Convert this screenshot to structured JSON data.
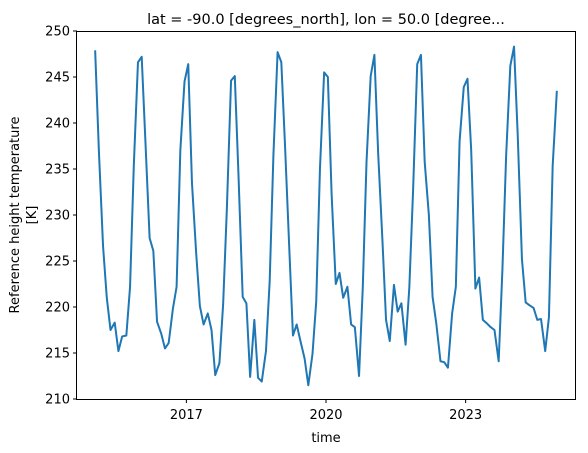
{
  "chart_data": {
    "type": "line",
    "title": "lat = -90.0 [degrees_north], lon = 50.0 [degree...",
    "xlabel": "time",
    "ylabel_lines": [
      "Reference height temperature",
      "[K]"
    ],
    "ylim": [
      210,
      250
    ],
    "xlim": [
      2014.65,
      2025.35
    ],
    "yticks": [
      210,
      215,
      220,
      225,
      230,
      235,
      240,
      245,
      250
    ],
    "xticks": [
      {
        "label": "2017",
        "x": 2017.0
      },
      {
        "label": "2020",
        "x": 2020.0
      },
      {
        "label": "2023",
        "x": 2023.0
      }
    ],
    "line_color": "#1f77b4",
    "series": [
      {
        "x": [
          2015.04,
          2015.12,
          2015.21,
          2015.29,
          2015.37,
          2015.46,
          2015.54,
          2015.62,
          2015.71,
          2015.79,
          2015.87,
          2015.96,
          2016.04,
          2016.12,
          2016.21,
          2016.29,
          2016.37,
          2016.46,
          2016.54,
          2016.62,
          2016.71,
          2016.79,
          2016.87,
          2016.96,
          2017.04,
          2017.12,
          2017.21,
          2017.29,
          2017.37,
          2017.46,
          2017.54,
          2017.62,
          2017.71,
          2017.79,
          2017.87,
          2017.96,
          2018.04,
          2018.12,
          2018.21,
          2018.29,
          2018.37,
          2018.46,
          2018.54,
          2018.62,
          2018.71,
          2018.79,
          2018.87,
          2018.96,
          2019.04,
          2019.12,
          2019.21,
          2019.29,
          2019.37,
          2019.46,
          2019.54,
          2019.62,
          2019.71,
          2019.79,
          2019.87,
          2019.96,
          2020.04,
          2020.12,
          2020.21,
          2020.29,
          2020.37,
          2020.46,
          2020.54,
          2020.62,
          2020.71,
          2020.79,
          2020.87,
          2020.96,
          2021.04,
          2021.12,
          2021.21,
          2021.29,
          2021.37,
          2021.46,
          2021.54,
          2021.62,
          2021.71,
          2021.79,
          2021.87,
          2021.96,
          2022.04,
          2022.12,
          2022.21,
          2022.29,
          2022.37,
          2022.46,
          2022.54,
          2022.62,
          2022.71,
          2022.79,
          2022.87,
          2022.96,
          2023.04,
          2023.12,
          2023.21,
          2023.29,
          2023.37,
          2023.46,
          2023.54,
          2023.62,
          2023.71,
          2023.79,
          2023.87,
          2023.96,
          2024.04,
          2024.12,
          2024.21,
          2024.29,
          2024.37,
          2024.46,
          2024.54,
          2024.62,
          2024.71,
          2024.79,
          2024.87,
          2024.96
        ],
        "y": [
          247.9,
          237.0,
          226.6,
          221.0,
          217.5,
          218.3,
          215.2,
          216.8,
          216.9,
          222.2,
          235.3,
          246.6,
          247.2,
          238.0,
          227.5,
          226.1,
          218.4,
          217.1,
          215.5,
          216.1,
          219.8,
          222.2,
          237.0,
          244.5,
          246.4,
          233.5,
          225.9,
          220.1,
          218.1,
          219.3,
          217.5,
          212.6,
          213.9,
          220.3,
          230.7,
          244.6,
          245.1,
          234.3,
          221.1,
          220.4,
          212.4,
          218.6,
          212.3,
          211.9,
          215.2,
          222.8,
          236.5,
          247.7,
          246.6,
          237.5,
          226.5,
          216.9,
          218.1,
          216.1,
          214.4,
          211.5,
          214.9,
          220.6,
          235.0,
          245.5,
          245.0,
          232.3,
          222.5,
          223.7,
          221.0,
          222.2,
          218.1,
          217.8,
          212.5,
          222.1,
          235.7,
          245.1,
          247.4,
          236.8,
          227.5,
          218.6,
          216.3,
          222.4,
          219.5,
          220.4,
          215.9,
          222.1,
          232.5,
          246.4,
          247.4,
          235.8,
          230.0,
          221.1,
          218.2,
          214.1,
          214.0,
          213.4,
          219.3,
          222.2,
          238.0,
          243.9,
          244.8,
          237.0,
          222.0,
          223.2,
          218.6,
          218.2,
          217.8,
          217.5,
          214.1,
          224.0,
          236.4,
          246.2,
          248.3,
          238.6,
          225.2,
          220.5,
          220.2,
          219.9,
          218.6,
          218.7,
          215.2,
          218.9,
          235.3,
          243.5
        ]
      }
    ]
  }
}
